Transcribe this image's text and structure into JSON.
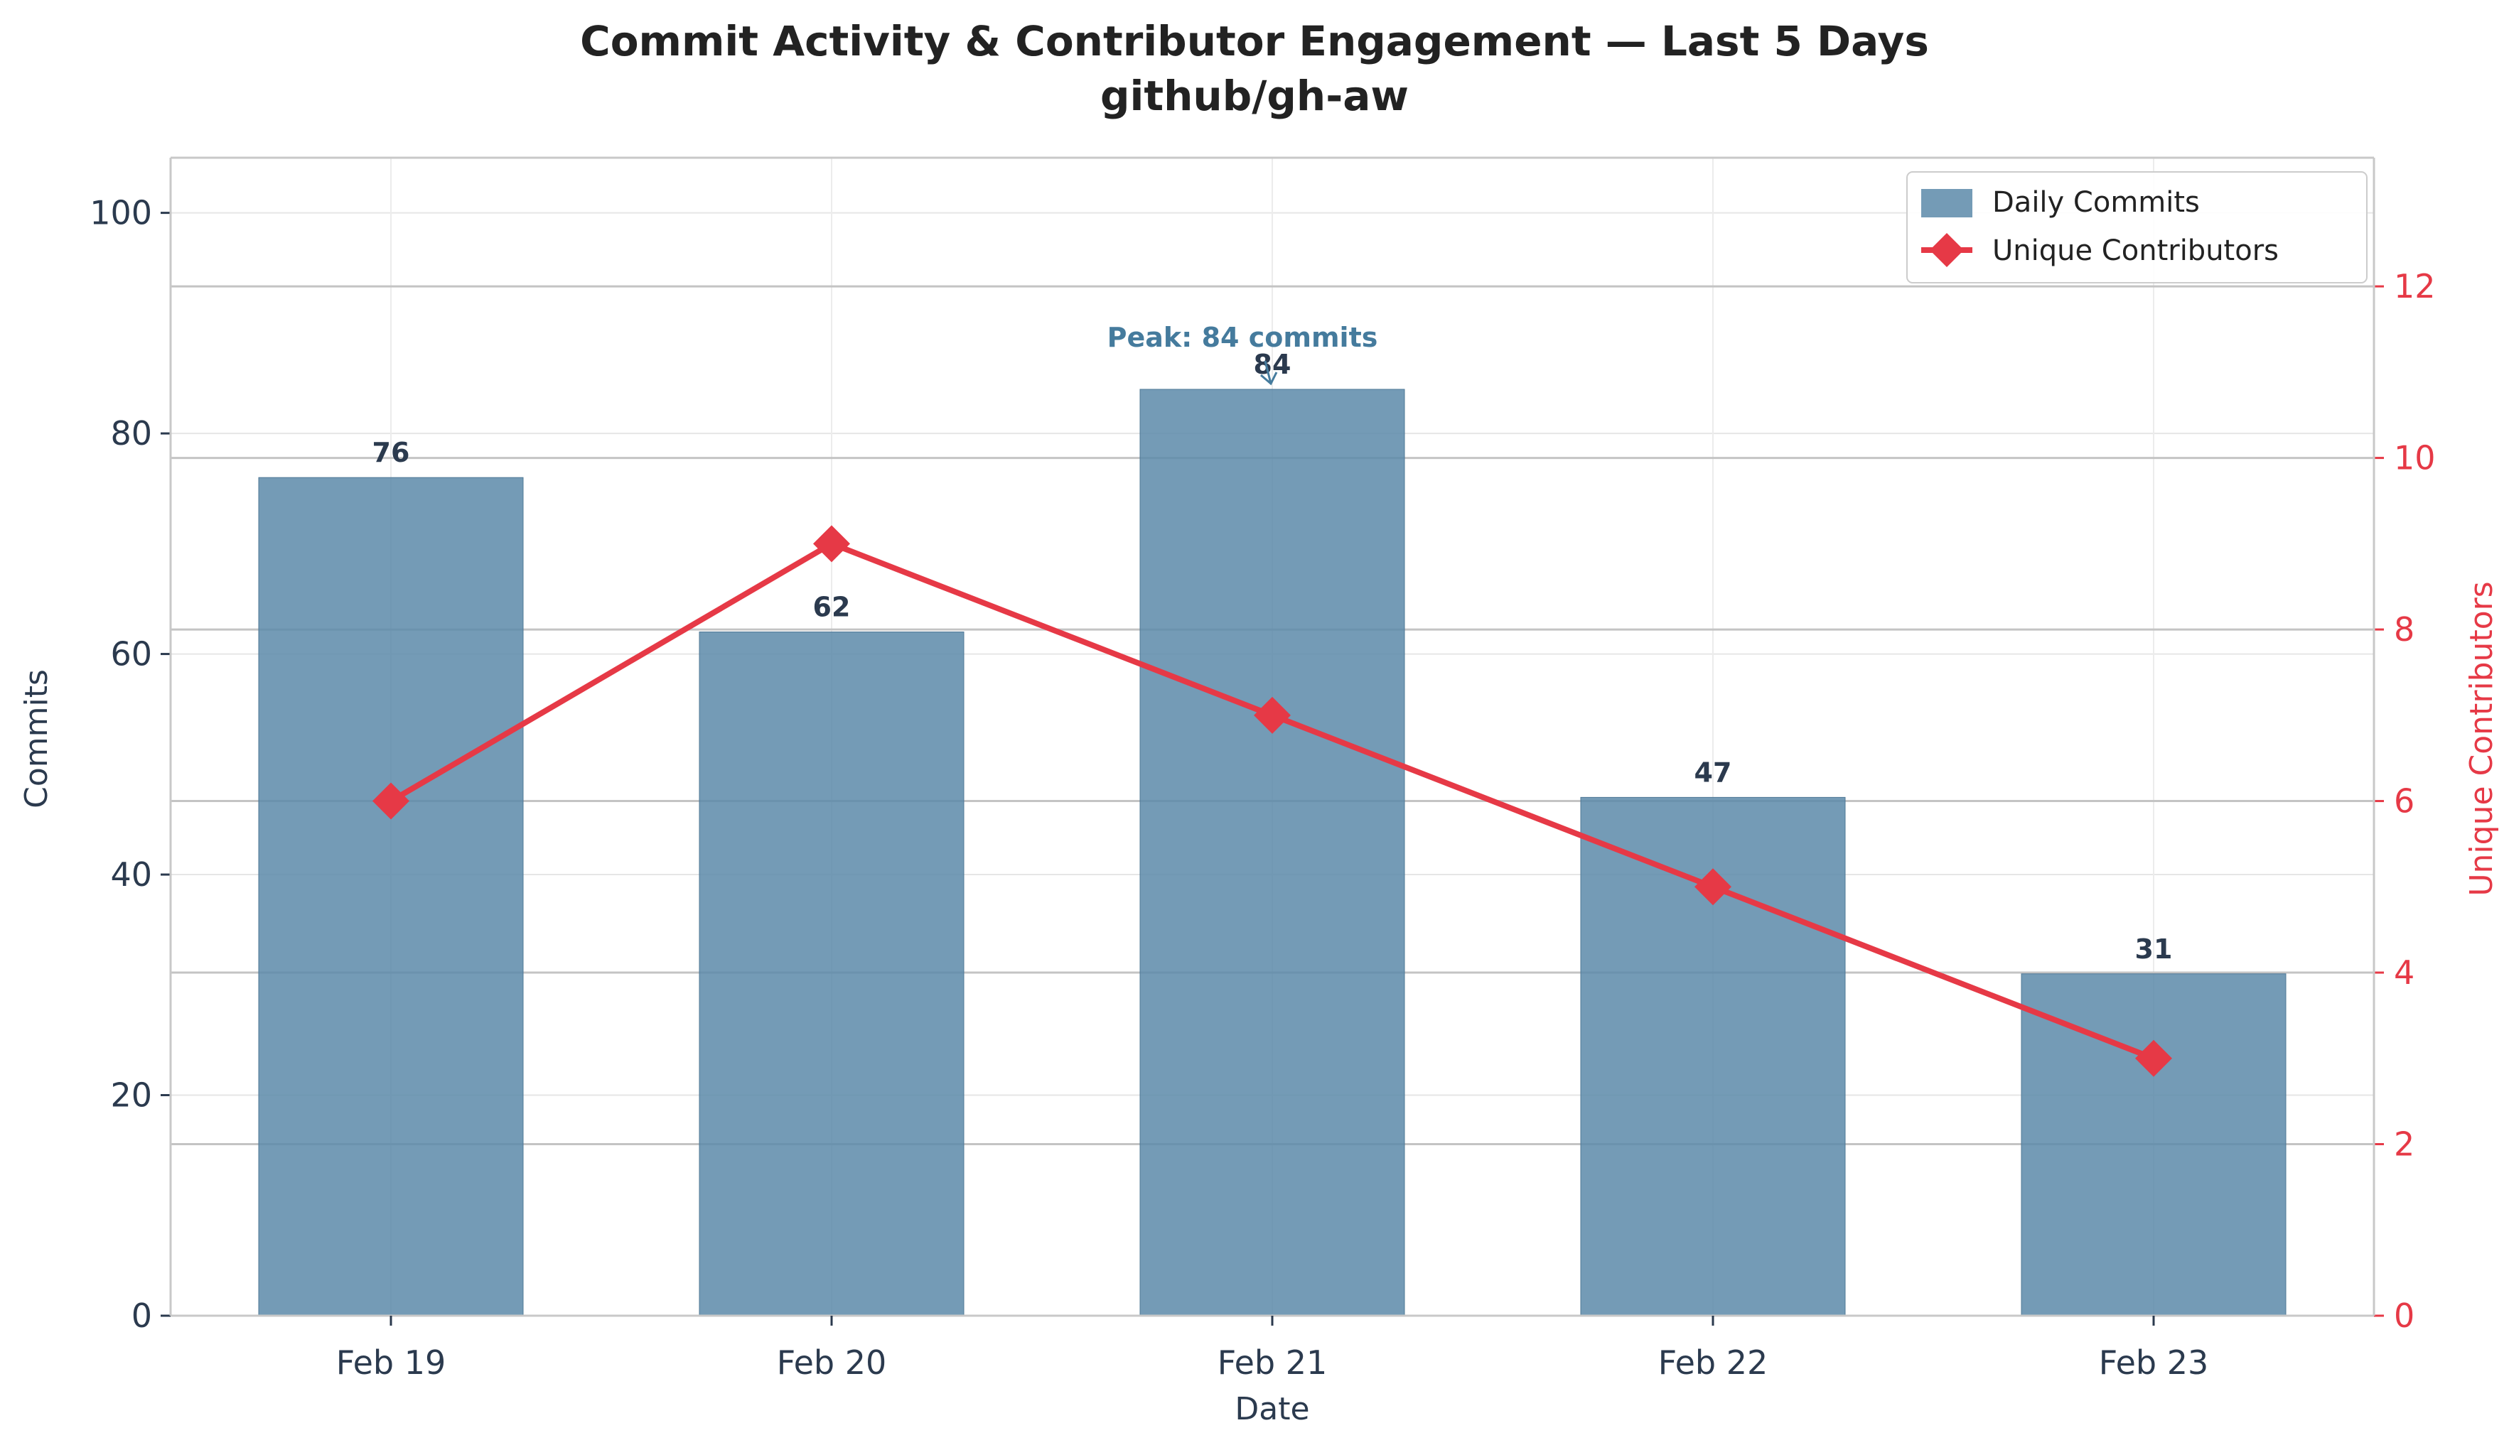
{
  "chart_data": {
    "type": "bar",
    "title": "Commit Activity & Contributor Engagement — Last 5 Days",
    "subtitle": "github/gh-aw",
    "xlabel": "Date",
    "ylabel": "Commits",
    "y2label": "Unique Contributors",
    "categories": [
      "Feb 19",
      "Feb 20",
      "Feb 21",
      "Feb 22",
      "Feb 23"
    ],
    "series": [
      {
        "name": "Daily Commits",
        "type": "bar",
        "axis": "left",
        "values": [
          76,
          62,
          84,
          47,
          31
        ],
        "data_labels": [
          "76",
          "62",
          "84",
          "47",
          "31"
        ],
        "color": "#5c89a9"
      },
      {
        "name": "Unique Contributors",
        "type": "line",
        "axis": "right",
        "marker": "diamond",
        "values": [
          6,
          9,
          7,
          5,
          3
        ],
        "color": "#e63946"
      }
    ],
    "ylim": [
      0,
      105
    ],
    "y_ticks": [
      0,
      20,
      40,
      60,
      80,
      100
    ],
    "y_tick_labels": [
      "0",
      "20",
      "40",
      "60",
      "80",
      "100"
    ],
    "y2lim": [
      0,
      13.5
    ],
    "y2_ticks": [
      0,
      2,
      4,
      6,
      8,
      10,
      12
    ],
    "y2_tick_labels": [
      "0",
      "2",
      "4",
      "6",
      "8",
      "10",
      "12"
    ],
    "annotation": {
      "text": "Peak: 84 commits",
      "category": "Feb 21",
      "value": 84,
      "color": "#457b9d"
    },
    "legend": {
      "position": "top-right",
      "entries": [
        "Daily Commits",
        "Unique Contributors"
      ]
    },
    "grid": true
  }
}
